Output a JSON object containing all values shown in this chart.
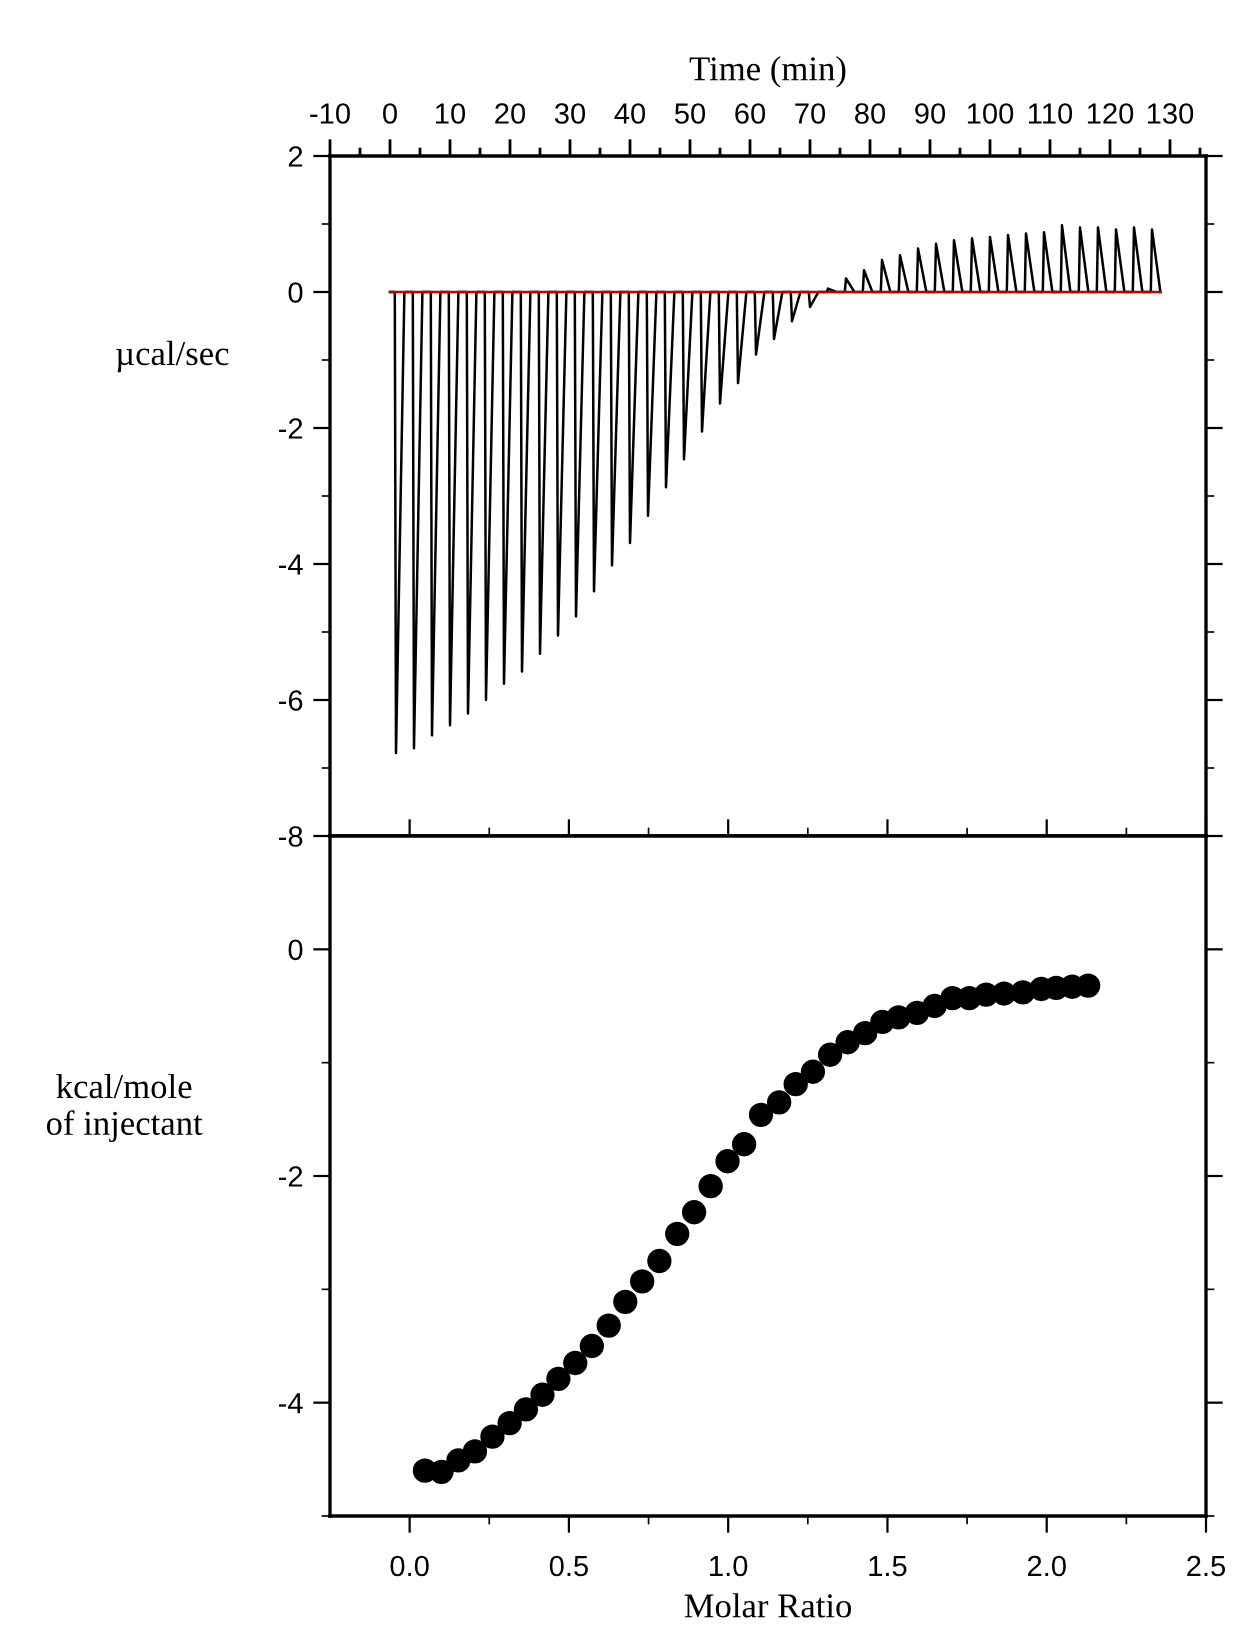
{
  "chart_data": [
    {
      "type": "line",
      "xlabel": "Time (min)",
      "ylabel": "µcal/sec",
      "xlim": [
        -10,
        136
      ],
      "xticks": [
        -10,
        {
          "value": -5,
          "label": null
        },
        0,
        {
          "value": 5,
          "label": null
        },
        10,
        {
          "value": 15,
          "label": null
        },
        20,
        {
          "value": 25,
          "label": null
        },
        30,
        {
          "value": 35,
          "label": null
        },
        40,
        {
          "value": 45,
          "label": null
        },
        50,
        {
          "value": 55,
          "label": null
        },
        60,
        {
          "value": 65,
          "label": null
        },
        70,
        {
          "value": 75,
          "label": null
        },
        80,
        {
          "value": 85,
          "label": null
        },
        90,
        {
          "value": 95,
          "label": null
        },
        100,
        {
          "value": 105,
          "label": null
        },
        110,
        {
          "value": 115,
          "label": null
        },
        120,
        {
          "value": 125,
          "label": null
        },
        130,
        {
          "value": 135,
          "label": null
        }
      ],
      "ylim": [
        -8,
        2
      ],
      "yticks": [
        -8,
        {
          "value": -7,
          "label": null
        },
        -6,
        {
          "value": -5,
          "label": null
        },
        -4,
        {
          "value": -3,
          "label": null
        },
        -2,
        {
          "value": -1,
          "label": null
        },
        0,
        {
          "value": 1,
          "label": null
        },
        2
      ],
      "grid": false,
      "legend": false,
      "marker": "none",
      "line_style": "solid",
      "series": [
        {
          "color": "#000000",
          "x": [
            0,
            0.8,
            1,
            2.4,
            3.8,
            4,
            5.4,
            6.8,
            7,
            8.4,
            9.8,
            10,
            11.4,
            12.8,
            13,
            14.4,
            15.8,
            16,
            17.4,
            18.8,
            19,
            20.4,
            21.8,
            22,
            23.4,
            24.8,
            25,
            26.4,
            27.8,
            28,
            29.4,
            30.8,
            31,
            32.4,
            33.8,
            34,
            35.4,
            36.8,
            37,
            38.4,
            39.8,
            40,
            41.4,
            42.8,
            43,
            44.4,
            45.8,
            46,
            47.4,
            48.8,
            49,
            50.4,
            51.8,
            52,
            53.4,
            54.8,
            55,
            56.4,
            57.8,
            58,
            59.4,
            60.8,
            61,
            62.4,
            63.8,
            64,
            65.4,
            66.8,
            67,
            68.4,
            69.8,
            70,
            71.4,
            72.8,
            73,
            74.4,
            75.8,
            76,
            77.4,
            78.8,
            79,
            80.4,
            81.8,
            82,
            83.4,
            84.8,
            85,
            86.4,
            87.8,
            88,
            89.4,
            90.8,
            91,
            92.4,
            93.8,
            94,
            95.4,
            96.8,
            97,
            98.4,
            99.8,
            100,
            101.4,
            102.8,
            103,
            104.4,
            105.8,
            106,
            107.4,
            108.8,
            109,
            110.4,
            111.8,
            112,
            113.4,
            114.8,
            115,
            116.4,
            117.8,
            118,
            119.4,
            120.8,
            121,
            122.4,
            123.8,
            124,
            125.4,
            126.8,
            127,
            128.4
          ],
          "values": [
            0,
            0,
            -6.78,
            0,
            0,
            -6.71,
            0,
            0,
            -6.52,
            0,
            0,
            -6.37,
            0,
            0,
            -6.2,
            0,
            0,
            -6.0,
            0,
            0,
            -5.76,
            0,
            0,
            -5.58,
            0,
            0,
            -5.32,
            0,
            0,
            -5.05,
            0,
            0,
            -4.77,
            0,
            0,
            -4.4,
            0,
            0,
            -4.02,
            0,
            0,
            -3.69,
            0,
            0,
            -3.29,
            0,
            0,
            -2.87,
            0,
            0,
            -2.46,
            0,
            0,
            -2.05,
            0,
            0,
            -1.64,
            0,
            0,
            -1.34,
            0,
            0,
            -0.92,
            0,
            0,
            -0.69,
            0,
            0,
            -0.43,
            0,
            0,
            -0.22,
            0,
            0,
            0.05,
            0,
            0,
            0.2,
            0,
            0,
            0.32,
            0,
            0,
            0.47,
            0,
            0,
            0.54,
            0,
            0,
            0.64,
            0,
            0,
            0.71,
            0,
            0,
            0.76,
            0,
            0,
            0.79,
            0,
            0,
            0.81,
            0,
            0,
            0.84,
            0,
            0,
            0.86,
            0,
            0,
            0.88,
            0,
            0,
            0.98,
            0,
            0,
            0.95,
            0,
            0,
            0.95,
            0,
            0,
            0.92,
            0,
            0,
            0.95,
            0,
            0,
            0.92,
            0
          ]
        },
        {
          "color": "#c00000",
          "x": [
            0,
            128.4
          ],
          "values": [
            0,
            0
          ]
        }
      ]
    },
    {
      "type": "scatter",
      "xlabel": "Molar Ratio",
      "ylabel": "kcal/mole\nof injectant",
      "xlim": [
        -0.25,
        2.5
      ],
      "xticks": [
        {
          "value": 0,
          "label": "0.0"
        },
        {
          "value": 0.25,
          "label": null
        },
        {
          "value": 0.5,
          "label": "0.5"
        },
        {
          "value": 0.75,
          "label": null
        },
        {
          "value": 1,
          "label": "1.0"
        },
        {
          "value": 1.25,
          "label": null
        },
        {
          "value": 1.5,
          "label": "1.5"
        },
        {
          "value": 1.75,
          "label": null
        },
        {
          "value": 2,
          "label": "2.0"
        },
        {
          "value": 2.25,
          "label": null
        },
        {
          "value": 2.5,
          "label": "2.5"
        }
      ],
      "ylim": [
        -5,
        1
      ],
      "yticks": [
        {
          "value": -5,
          "label": null
        },
        -4,
        {
          "value": -3,
          "label": null
        },
        -2,
        {
          "value": -1,
          "label": null
        },
        0,
        {
          "value": 1,
          "label": null
        }
      ],
      "grid": false,
      "legend": false,
      "marker": "circle",
      "series": [
        {
          "color": "#000000",
          "x": [
            0.048,
            0.1,
            0.153,
            0.205,
            0.26,
            0.314,
            0.365,
            0.417,
            0.467,
            0.52,
            0.572,
            0.625,
            0.677,
            0.73,
            0.784,
            0.84,
            0.893,
            0.945,
            0.998,
            1.05,
            1.103,
            1.16,
            1.212,
            1.266,
            1.32,
            1.375,
            1.43,
            1.484,
            1.535,
            1.593,
            1.648,
            1.704,
            1.757,
            1.81,
            1.866,
            1.925,
            1.983,
            2.03,
            2.08,
            2.13
          ],
          "values": [
            -4.6,
            -4.61,
            -4.51,
            -4.43,
            -4.3,
            -4.18,
            -4.06,
            -3.93,
            -3.79,
            -3.65,
            -3.5,
            -3.32,
            -3.11,
            -2.93,
            -2.75,
            -2.51,
            -2.32,
            -2.09,
            -1.87,
            -1.72,
            -1.46,
            -1.35,
            -1.19,
            -1.08,
            -0.93,
            -0.82,
            -0.74,
            -0.64,
            -0.6,
            -0.56,
            -0.5,
            -0.43,
            -0.43,
            -0.4,
            -0.39,
            -0.38,
            -0.35,
            -0.34,
            -0.33,
            -0.32
          ]
        }
      ]
    }
  ]
}
